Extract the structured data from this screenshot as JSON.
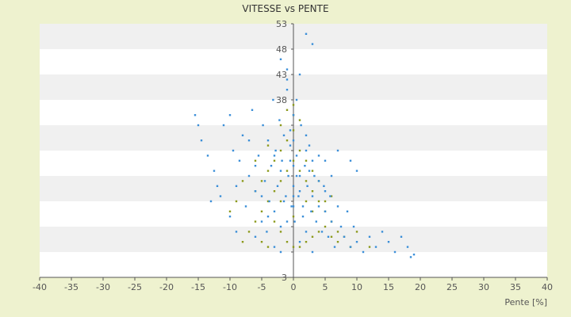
{
  "chart_data": {
    "type": "scatter",
    "title": "VITESSE vs PENTE",
    "xlabel": "Pente [%]",
    "ylabel": "",
    "xlim": [
      -40,
      40
    ],
    "ylim": [
      3,
      53
    ],
    "x_ticks": [
      -40,
      -35,
      -30,
      -25,
      -20,
      -15,
      -10,
      -5,
      0,
      5,
      10,
      15,
      20,
      25,
      30,
      35,
      40
    ],
    "y_ticks": [
      3,
      8,
      13,
      18,
      23,
      28,
      33,
      38,
      43,
      48,
      53
    ],
    "y_tick_labels": [
      "3",
      "",
      "",
      "",
      "",
      "",
      "",
      "38",
      "43",
      "48",
      "53"
    ],
    "grid": "alternating horizontal bands",
    "colors": {
      "background": "#eef2cf",
      "plot_band_light": "#ffffff",
      "plot_band_dark": "#f0f0f0",
      "axis": "#555555",
      "series_primary": "#3b8fd8",
      "series_secondary": "#8c9a1c"
    },
    "series": [
      {
        "color": "#8c9a1c",
        "points": [
          [
            -8,
            10
          ],
          [
            -7,
            12
          ],
          [
            -6,
            14
          ],
          [
            -5,
            16
          ],
          [
            -4,
            18
          ],
          [
            -3,
            20
          ],
          [
            -2,
            22
          ],
          [
            -1,
            24
          ],
          [
            0,
            26
          ],
          [
            1,
            24
          ],
          [
            2,
            22
          ],
          [
            3,
            20
          ],
          [
            4,
            18
          ],
          [
            5,
            16
          ],
          [
            6,
            14
          ],
          [
            7,
            12
          ],
          [
            8,
            11
          ],
          [
            -6,
            20
          ],
          [
            -5,
            22
          ],
          [
            -4,
            24
          ],
          [
            -3,
            26
          ],
          [
            -2,
            28
          ],
          [
            -1,
            30
          ],
          [
            0,
            32
          ],
          [
            1,
            28
          ],
          [
            2,
            26
          ],
          [
            3,
            24
          ],
          [
            4,
            22
          ],
          [
            -3,
            14
          ],
          [
            -2,
            12
          ],
          [
            -1,
            10
          ],
          [
            0,
            9
          ],
          [
            1,
            9
          ],
          [
            2,
            10
          ],
          [
            3,
            11
          ],
          [
            4,
            12
          ],
          [
            5,
            13
          ],
          [
            6,
            11
          ],
          [
            7,
            10
          ],
          [
            9,
            9
          ],
          [
            -4,
            29
          ],
          [
            -2,
            33
          ],
          [
            0,
            37
          ],
          [
            -1,
            36
          ],
          [
            0,
            35
          ],
          [
            1,
            34
          ],
          [
            -6,
            26
          ],
          [
            -8,
            22
          ],
          [
            -9,
            18
          ],
          [
            -10,
            16
          ],
          [
            10,
            12
          ],
          [
            12,
            9
          ],
          [
            -5,
            10
          ],
          [
            -4,
            9
          ],
          [
            3,
            16
          ],
          [
            5,
            18
          ],
          [
            6,
            19
          ],
          [
            -2,
            18
          ],
          [
            0,
            15
          ],
          [
            2,
            18
          ]
        ]
      },
      {
        "color": "#3b8fd8",
        "points": [
          [
            -15.5,
            35
          ],
          [
            -15,
            33
          ],
          [
            -14.5,
            30
          ],
          [
            -13.5,
            27
          ],
          [
            -12.5,
            24
          ],
          [
            -11.5,
            19
          ],
          [
            -10,
            15
          ],
          [
            -10,
            35
          ],
          [
            -9.5,
            28
          ],
          [
            -9,
            21
          ],
          [
            -8.5,
            26
          ],
          [
            -8,
            31
          ],
          [
            -7.5,
            17
          ],
          [
            -7,
            23
          ],
          [
            -6.5,
            36
          ],
          [
            -6,
            20
          ],
          [
            -5.5,
            27
          ],
          [
            -5,
            14
          ],
          [
            -4.8,
            33
          ],
          [
            -4.5,
            22
          ],
          [
            -4.2,
            12
          ],
          [
            -4,
            30
          ],
          [
            -3.8,
            18
          ],
          [
            -3.5,
            25
          ],
          [
            -3.2,
            38
          ],
          [
            -3,
            16
          ],
          [
            -2.8,
            28
          ],
          [
            -2.5,
            21
          ],
          [
            -2.2,
            34
          ],
          [
            -2,
            13
          ],
          [
            -1.8,
            26
          ],
          [
            -1.5,
            31
          ],
          [
            -1.2,
            19
          ],
          [
            -1,
            42
          ],
          [
            -1,
            44
          ],
          [
            -0.8,
            23
          ],
          [
            -0.5,
            29
          ],
          [
            -0.3,
            17
          ],
          [
            0,
            21
          ],
          [
            0,
            25
          ],
          [
            0,
            30
          ],
          [
            0.2,
            14
          ],
          [
            0.5,
            27
          ],
          [
            0.8,
            19
          ],
          [
            1,
            23
          ],
          [
            1.2,
            33
          ],
          [
            1.5,
            17
          ],
          [
            1.8,
            25
          ],
          [
            2,
            12
          ],
          [
            2,
            51
          ],
          [
            2.2,
            21
          ],
          [
            2.5,
            29
          ],
          [
            2.8,
            16
          ],
          [
            3,
            19
          ],
          [
            3,
            49
          ],
          [
            3.3,
            23
          ],
          [
            3.6,
            14
          ],
          [
            4,
            17
          ],
          [
            4,
            27
          ],
          [
            4.5,
            12
          ],
          [
            4.8,
            21
          ],
          [
            5,
            16
          ],
          [
            5.5,
            11
          ],
          [
            5.8,
            19
          ],
          [
            6,
            14
          ],
          [
            6.5,
            9
          ],
          [
            7,
            17
          ],
          [
            7.5,
            13
          ],
          [
            8,
            11
          ],
          [
            8.5,
            16
          ],
          [
            9,
            9
          ],
          [
            9.5,
            13
          ],
          [
            10,
            10
          ],
          [
            11,
            8
          ],
          [
            12,
            11
          ],
          [
            13,
            9
          ],
          [
            14,
            12
          ],
          [
            15,
            10
          ],
          [
            16,
            8
          ],
          [
            17,
            11
          ],
          [
            18,
            9
          ],
          [
            18.5,
            7
          ],
          [
            19,
            7.5
          ],
          [
            -2,
            46
          ],
          [
            -1,
            40
          ],
          [
            0,
            35
          ],
          [
            0.5,
            38
          ],
          [
            1,
            43
          ],
          [
            -0.5,
            32
          ],
          [
            -5,
            19
          ],
          [
            -6,
            25
          ],
          [
            -7,
            30
          ],
          [
            -3,
            9
          ],
          [
            -2,
            8
          ],
          [
            1,
            10
          ],
          [
            3,
            8
          ],
          [
            5,
            26
          ],
          [
            7,
            28
          ],
          [
            9,
            26
          ],
          [
            10,
            24
          ],
          [
            -9,
            12
          ],
          [
            -11,
            33
          ],
          [
            -12,
            21
          ],
          [
            -13,
            18
          ],
          [
            2,
            31
          ],
          [
            -1,
            14
          ],
          [
            0,
            17
          ],
          [
            1,
            20
          ],
          [
            -2,
            24
          ],
          [
            -3,
            27
          ],
          [
            4,
            22
          ],
          [
            5,
            20
          ],
          [
            6,
            23
          ],
          [
            3,
            26
          ],
          [
            2,
            28
          ],
          [
            -4,
            15
          ],
          [
            -6,
            11
          ],
          [
            0,
            19
          ],
          [
            0.5,
            23
          ],
          [
            -0.5,
            26
          ],
          [
            1.5,
            15
          ],
          [
            -1.5,
            18
          ],
          [
            2.5,
            24
          ]
        ]
      }
    ]
  }
}
